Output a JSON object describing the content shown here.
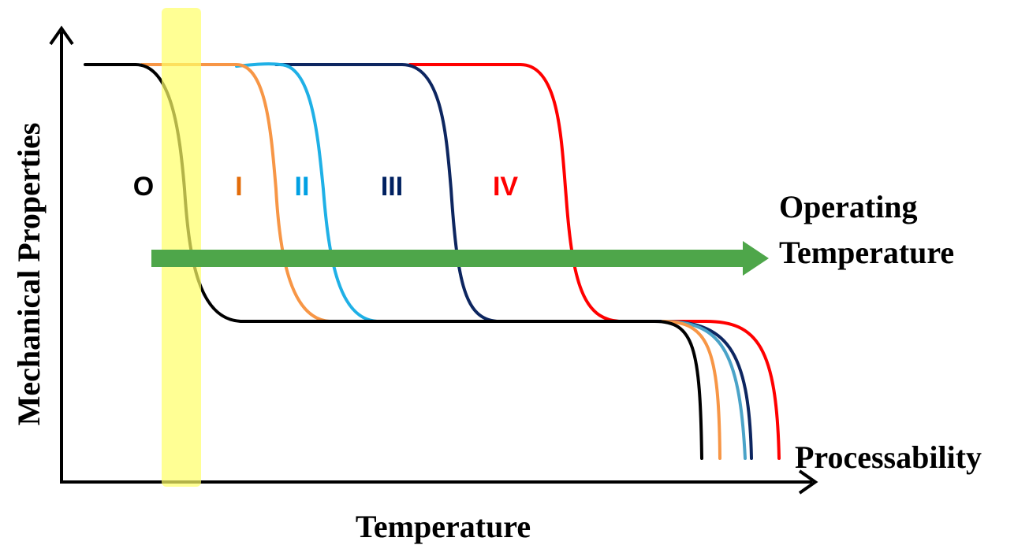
{
  "diagram": {
    "x_axis_label": "Temperature",
    "y_axis_label": "Mechanical Properties",
    "arrow_label_line1": "Operating",
    "arrow_label_line2": "Temperature",
    "processability_label": "Processability",
    "regions": [
      {
        "id": "O",
        "label": "O",
        "color": "#000000"
      },
      {
        "id": "I",
        "label": "I",
        "color": "#e36c09"
      },
      {
        "id": "II",
        "label": "II",
        "color": "#00a0e3"
      },
      {
        "id": "III",
        "label": "III",
        "color": "#002060"
      },
      {
        "id": "IV",
        "label": "IV",
        "color": "#ff0000"
      }
    ],
    "curve_colors": {
      "O": "#000000",
      "I": "#f79646",
      "II": "#1fb0e6",
      "III": "#0d2660",
      "IV": "#ff0000",
      "II_tail": "#4aa3c8"
    },
    "highlight_color": "#ffff66",
    "arrow_color": "#4ea64a"
  }
}
